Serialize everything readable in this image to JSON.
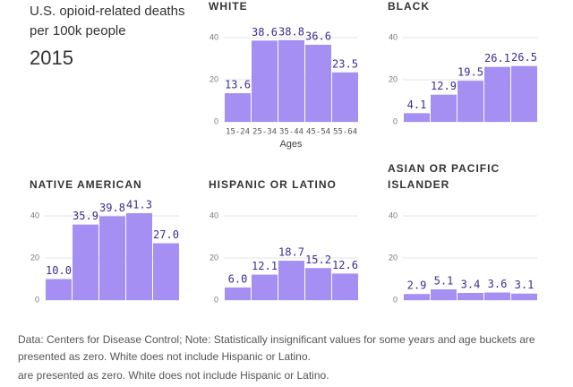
{
  "title": "U.S. opioid-related deaths per 100k people",
  "year": "2015",
  "notes": [
    "Data: Centers for Disease Control; Note: Statistically insignificant values for some years and age buckets are presented as zero. White does not include Hispanic or Latino.",
    "are presented as zero. White does not include Hispanic or Latino."
  ],
  "chart_data": [
    {
      "type": "bar",
      "title": "WHITE",
      "xlabel": "Ages",
      "categories": [
        "15-24",
        "25-34",
        "35-44",
        "45-54",
        "55-64"
      ],
      "values": [
        13.6,
        38.6,
        38.8,
        36.6,
        23.5
      ],
      "value_labels": [
        "13.6",
        "38.6",
        "38.8",
        "36.6",
        "23.5"
      ],
      "color": "#a58ff2",
      "ylim": [
        0,
        45
      ],
      "yticks": [
        0,
        20,
        40
      ],
      "grid": true
    },
    {
      "type": "bar",
      "title": "BLACK",
      "categories": [
        null,
        null,
        null,
        null,
        null
      ],
      "values": [
        4.1,
        12.9,
        19.5,
        26.1,
        26.5
      ],
      "value_labels": [
        "4.1",
        "12.9",
        "19.5",
        "26.1",
        "26.5"
      ],
      "color": "#a58ff2",
      "ylim": [
        0,
        45
      ],
      "yticks": [
        0,
        20,
        40
      ],
      "grid": true
    },
    {
      "type": "bar",
      "title": "NATIVE AMERICAN",
      "categories": [
        null,
        null,
        null,
        null,
        null
      ],
      "values": [
        10.0,
        35.9,
        39.8,
        41.3,
        27.0
      ],
      "value_labels": [
        "10.0",
        "35.9",
        "39.8",
        "41.3",
        "27.0"
      ],
      "color": "#a58ff2",
      "ylim": [
        0,
        45
      ],
      "yticks": [
        0,
        20,
        40
      ],
      "grid": true
    },
    {
      "type": "bar",
      "title": "HISPANIC OR LATINO",
      "categories": [
        null,
        null,
        null,
        null,
        null
      ],
      "values": [
        6.0,
        12.1,
        18.7,
        15.2,
        12.6
      ],
      "value_labels": [
        "6.0",
        "12.1",
        "18.7",
        "15.2",
        "12.6"
      ],
      "color": "#a58ff2",
      "ylim": [
        0,
        45
      ],
      "yticks": [
        0,
        20,
        40
      ],
      "grid": true
    },
    {
      "type": "bar",
      "title": "ASIAN OR PACIFIC ISLANDER",
      "categories": [
        null,
        null,
        null,
        null,
        null
      ],
      "values": [
        2.9,
        5.1,
        3.4,
        3.6,
        3.1
      ],
      "value_labels": [
        "2.9",
        "5.1",
        "3.4",
        "3.6",
        "3.1"
      ],
      "color": "#a58ff2",
      "ylim": [
        0,
        45
      ],
      "yticks": [
        0,
        20,
        40
      ],
      "grid": true
    }
  ]
}
